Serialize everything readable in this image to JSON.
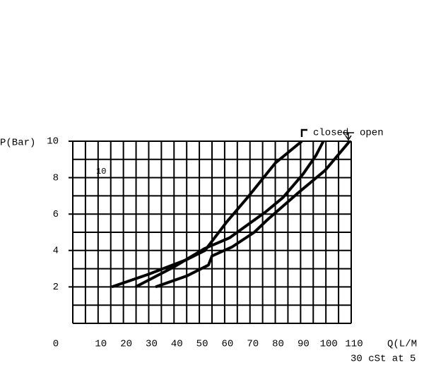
{
  "chart_data": {
    "type": "line",
    "y_label": "P(Bar)",
    "x_label": "Q(L/M",
    "note": "30 cSt at 5",
    "inner_label": "10",
    "xlim": [
      0,
      110
    ],
    "xticks": [
      0,
      10,
      20,
      30,
      40,
      50,
      60,
      70,
      80,
      90,
      100,
      110
    ],
    "ylim": [
      0,
      10
    ],
    "yticks": [
      2,
      4,
      6,
      8,
      10
    ],
    "grid": true,
    "series": [
      {
        "name": "closed",
        "color": "#000000",
        "x": [
          15.4,
          30,
          45,
          52.2,
          61,
          69,
          80,
          90.5
        ],
        "values": [
          2,
          2.7,
          3.5,
          4,
          5.6,
          6.9,
          8.8,
          10
        ]
      },
      {
        "name": "open",
        "color": "#000000",
        "x": [
          24.8,
          40,
          52,
          62,
          69,
          76,
          83,
          91,
          96,
          99
        ],
        "values": [
          2,
          3.1,
          4.1,
          4.7,
          5.4,
          6.1,
          6.9,
          8.2,
          9.2,
          10
        ]
      },
      {
        "color": "#000000",
        "x": [
          32.7,
          45,
          53.6,
          55,
          63,
          71.7,
          77,
          88.5,
          99.7,
          109.4
        ],
        "values": [
          2,
          2.6,
          3.2,
          3.7,
          4.2,
          5,
          5.7,
          7.1,
          8.4,
          10
        ]
      }
    ]
  }
}
